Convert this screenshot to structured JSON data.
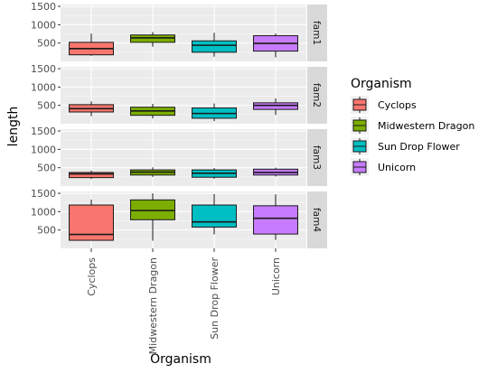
{
  "chart_data": {
    "type": "boxplot",
    "facet_rows": [
      "fam1",
      "fam2",
      "fam3",
      "fam4"
    ],
    "categories": [
      "Cyclops",
      "Midwestern Dragon",
      "Sun Drop Flower",
      "Unicorn"
    ],
    "xlabel": "Organism",
    "ylabel": "length",
    "y_ticks": [
      500,
      1000,
      1500
    ],
    "ylim": [
      0,
      1550
    ],
    "legend": {
      "title": "Organism",
      "entries": [
        "Cyclops",
        "Midwestern Dragon",
        "Sun Drop Flower",
        "Unicorn"
      ],
      "placement": "right"
    },
    "colors": {
      "Cyclops": "#f8766d",
      "Midwestern Dragon": "#7cae00",
      "Sun Drop Flower": "#00bfc4",
      "Unicorn": "#c77cff"
    },
    "grid": true,
    "facets": [
      {
        "name": "fam1",
        "boxes": [
          {
            "category": "Cyclops",
            "min": 150,
            "q1": 180,
            "median": 350,
            "q3": 520,
            "max": 760
          },
          {
            "category": "Midwestern Dragon",
            "min": 400,
            "q1": 520,
            "median": 640,
            "q3": 720,
            "max": 800
          },
          {
            "category": "Sun Drop Flower",
            "min": 130,
            "q1": 250,
            "median": 440,
            "q3": 560,
            "max": 780
          },
          {
            "category": "Unicorn",
            "min": 110,
            "q1": 280,
            "median": 490,
            "q3": 700,
            "max": 760
          }
        ]
      },
      {
        "name": "fam2",
        "boxes": [
          {
            "category": "Cyclops",
            "min": 210,
            "q1": 320,
            "median": 410,
            "q3": 520,
            "max": 610
          },
          {
            "category": "Midwestern Dragon",
            "min": 140,
            "q1": 230,
            "median": 350,
            "q3": 450,
            "max": 540
          },
          {
            "category": "Sun Drop Flower",
            "min": 70,
            "q1": 150,
            "median": 280,
            "q3": 430,
            "max": 550
          },
          {
            "category": "Unicorn",
            "min": 240,
            "q1": 390,
            "median": 500,
            "q3": 570,
            "max": 690
          }
        ]
      },
      {
        "name": "fam3",
        "boxes": [
          {
            "category": "Cyclops",
            "min": 190,
            "q1": 230,
            "median": 330,
            "q3": 370,
            "max": 420
          },
          {
            "category": "Midwestern Dragon",
            "min": 250,
            "q1": 300,
            "median": 380,
            "q3": 440,
            "max": 510
          },
          {
            "category": "Sun Drop Flower",
            "min": 200,
            "q1": 240,
            "median": 350,
            "q3": 440,
            "max": 490
          },
          {
            "category": "Unicorn",
            "min": 260,
            "q1": 300,
            "median": 370,
            "q3": 460,
            "max": 500
          }
        ]
      },
      {
        "name": "fam4",
        "boxes": [
          {
            "category": "Cyclops",
            "min": 210,
            "q1": 220,
            "median": 380,
            "q3": 1180,
            "max": 1330
          },
          {
            "category": "Midwestern Dragon",
            "min": 210,
            "q1": 780,
            "median": 1030,
            "q3": 1320,
            "max": 1500
          },
          {
            "category": "Sun Drop Flower",
            "min": 380,
            "q1": 580,
            "median": 720,
            "q3": 1180,
            "max": 1480
          },
          {
            "category": "Unicorn",
            "min": 230,
            "q1": 390,
            "median": 820,
            "q3": 1160,
            "max": 1470
          }
        ]
      }
    ]
  }
}
